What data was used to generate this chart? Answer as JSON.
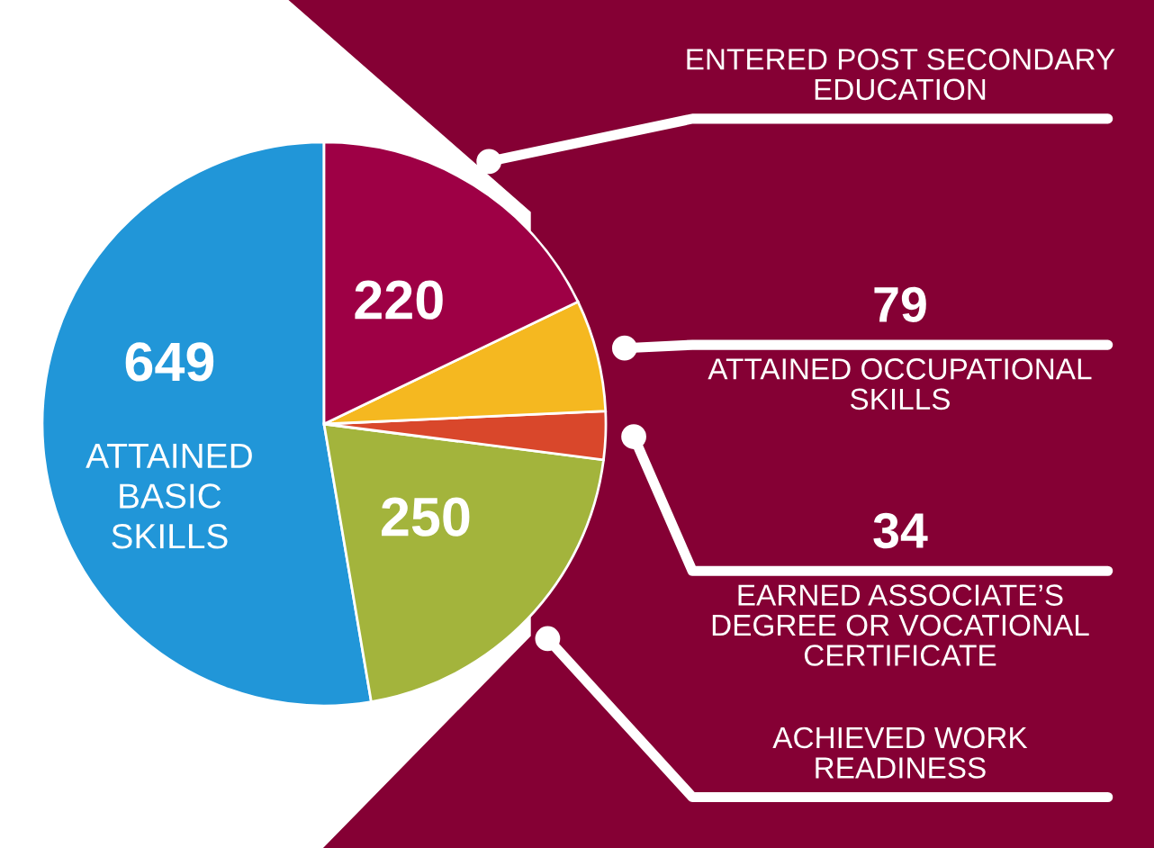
{
  "chart_data": {
    "type": "pie",
    "categories": [
      "ATTAINED BASIC SKILLS",
      "ACHIEVED WORK READINESS",
      "EARNED ASSOCIATE’S DEGREE OR VOCATIONAL CERTIFICATE",
      "ATTAINED OCCUPATIONAL SKILLS",
      "ENTERED POST SECONDARY EDUCATION"
    ],
    "values": [
      649,
      250,
      34,
      79,
      220
    ],
    "colors": [
      "#2196d8",
      "#a3b43c",
      "#d9472b",
      "#f5b820",
      "#9e0045"
    ],
    "data_labels": true
  }
}
